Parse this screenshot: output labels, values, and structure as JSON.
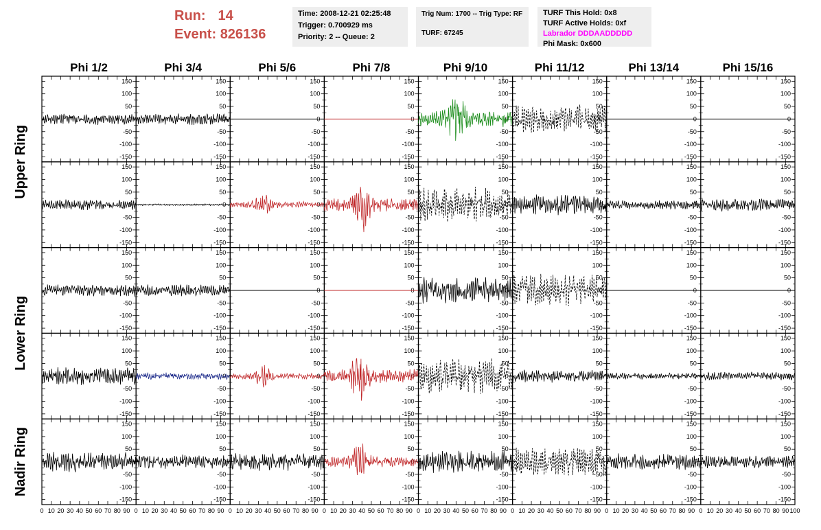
{
  "header": {
    "run_label": "Run:",
    "run_value": "14",
    "event_label": "Event:",
    "event_value": "826136"
  },
  "info_panel": {
    "time": "Time: 2008-12-21 02:25:48",
    "trigger": "Trigger: 0.700929 ms",
    "priority": "Priority: 2 -- Queue: 2"
  },
  "trig_panel": {
    "trig": "Trig Num: 1700 -- Trig Type: RF",
    "turf": "TURF: 67245"
  },
  "turf_panel": {
    "this_hold": "TURF This Hold: 0x8",
    "active_holds": "TURF Active Holds: 0xf",
    "labrador": "Labrador DDDAADDDDD",
    "phi_mask": "Phi Mask: 0x600"
  },
  "colors": {
    "header_red": "#c8504a",
    "magenta": "#ff00ff",
    "black": "#000000",
    "red": "#c0282a",
    "green": "#1a8c1a",
    "blue": "#1c2a8a"
  },
  "chart_data": {
    "type": "line",
    "columns": [
      "Phi 1/2",
      "Phi 3/4",
      "Phi 5/6",
      "Phi 7/8",
      "Phi 9/10",
      "Phi 11/12",
      "Phi 13/14",
      "Phi 15/16"
    ],
    "ring_labels": [
      "Upper Ring",
      "Lower Ring",
      "Nadir Ring"
    ],
    "xlim": [
      0,
      100
    ],
    "ylim": [
      -170,
      170
    ],
    "x_ticks": [
      "0",
      "10",
      "20",
      "30",
      "40",
      "50",
      "60",
      "70",
      "80",
      "90",
      "100"
    ],
    "y_ticks": [
      "150",
      "100",
      "50",
      "0",
      "-50",
      "-100",
      "-150"
    ],
    "waveforms": [
      [
        {
          "amp": 20,
          "color": "black",
          "style": "solid"
        },
        {
          "amp": 20,
          "color": "black",
          "style": "solid"
        },
        {
          "amp": 0,
          "color": "black",
          "style": "solid"
        },
        {
          "amp": 0,
          "color": "red",
          "style": "solid"
        },
        {
          "amp": 90,
          "color": "green",
          "style": "solid",
          "burst_x": 40
        },
        {
          "amp": 50,
          "color": "black",
          "style": "dashed"
        },
        {
          "amp": 0,
          "color": "black",
          "style": "solid"
        },
        {
          "amp": 0,
          "color": "black",
          "style": "solid"
        }
      ],
      [
        {
          "amp": 18,
          "color": "black",
          "style": "solid"
        },
        {
          "amp": 3,
          "color": "black",
          "style": "solid"
        },
        {
          "amp": 35,
          "color": "red",
          "style": "solid",
          "burst_x": 35
        },
        {
          "amp": 80,
          "color": "red",
          "style": "solid",
          "burst_x": 40
        },
        {
          "amp": 60,
          "color": "black",
          "style": "dashed"
        },
        {
          "amp": 35,
          "color": "black",
          "style": "solid"
        },
        {
          "amp": 15,
          "color": "black",
          "style": "solid"
        },
        {
          "amp": 22,
          "color": "black",
          "style": "solid"
        }
      ],
      [
        {
          "amp": 20,
          "color": "black",
          "style": "solid"
        },
        {
          "amp": 20,
          "color": "black",
          "style": "solid"
        },
        {
          "amp": 0,
          "color": "black",
          "style": "solid"
        },
        {
          "amp": 0,
          "color": "red",
          "style": "solid"
        },
        {
          "amp": 45,
          "color": "black",
          "style": "solid"
        },
        {
          "amp": 55,
          "color": "black",
          "style": "dashed"
        },
        {
          "amp": 0,
          "color": "black",
          "style": "solid"
        },
        {
          "amp": 0,
          "color": "black",
          "style": "solid"
        }
      ],
      [
        {
          "amp": 30,
          "color": "black",
          "style": "solid"
        },
        {
          "amp": 12,
          "color": "blue",
          "style": "solid"
        },
        {
          "amp": 35,
          "color": "red",
          "style": "solid",
          "burst_x": 35
        },
        {
          "amp": 80,
          "color": "red",
          "style": "solid",
          "burst_x": 38
        },
        {
          "amp": 60,
          "color": "black",
          "style": "dashed"
        },
        {
          "amp": 22,
          "color": "black",
          "style": "solid"
        },
        {
          "amp": 12,
          "color": "black",
          "style": "solid"
        },
        {
          "amp": 14,
          "color": "black",
          "style": "solid"
        }
      ],
      [
        {
          "amp": 35,
          "color": "black",
          "style": "solid"
        },
        {
          "amp": 25,
          "color": "black",
          "style": "solid"
        },
        {
          "amp": 30,
          "color": "black",
          "style": "solid"
        },
        {
          "amp": 60,
          "color": "red",
          "style": "solid",
          "burst_x": 38
        },
        {
          "amp": 40,
          "color": "black",
          "style": "solid"
        },
        {
          "amp": 50,
          "color": "black",
          "style": "dashed"
        },
        {
          "amp": 28,
          "color": "black",
          "style": "solid"
        },
        {
          "amp": 22,
          "color": "black",
          "style": "solid"
        }
      ]
    ]
  }
}
